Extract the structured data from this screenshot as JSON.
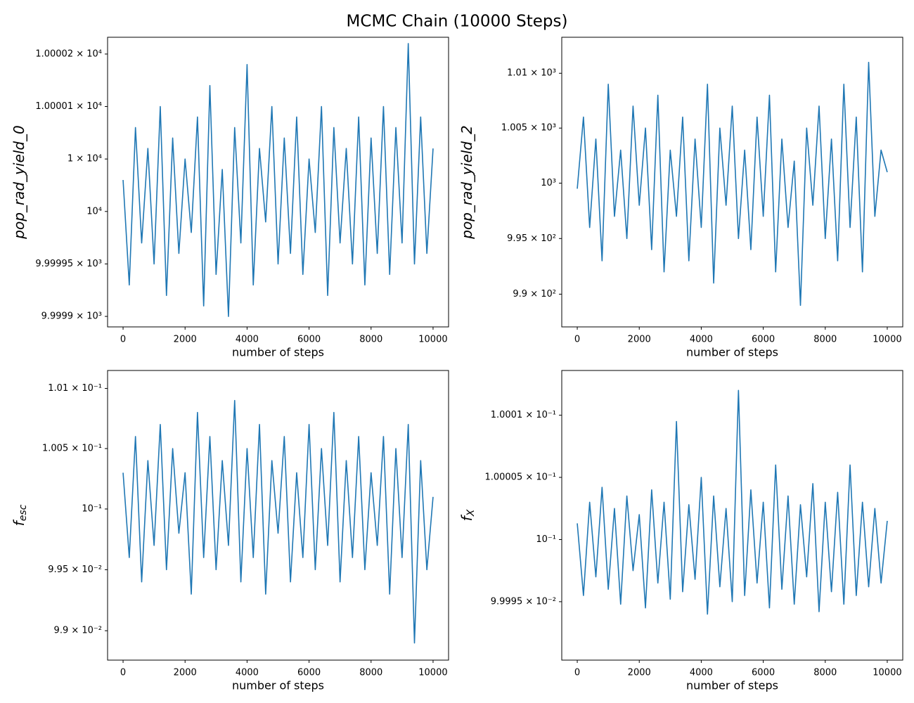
{
  "title": "MCMC Chain (10000 Steps)",
  "chart_data": [
    {
      "type": "line",
      "xlabel": "number of steps",
      "ylabel": "pop_rad_yield_0",
      "yscale": "log",
      "color": "#1f77b4",
      "xlim": [
        -500,
        10500
      ],
      "xticks": [
        0,
        2000,
        4000,
        6000,
        8000,
        10000
      ],
      "ylim": [
        9999.89,
        10000.166
      ],
      "yticks": [
        {
          "value": 9999.9,
          "label": "9.9999 × 10³"
        },
        {
          "value": 9999.95,
          "label": "9.99995 × 10³"
        },
        {
          "value": 10000,
          "label": "10⁴"
        },
        {
          "value": 10000.05,
          "label": "1 × 10⁴"
        },
        {
          "value": 10000.1,
          "label": "1.00001 × 10⁴"
        },
        {
          "value": 10000.15,
          "label": "1.00002 × 10⁴"
        }
      ],
      "x": [
        0,
        200,
        400,
        600,
        800,
        1000,
        1200,
        1400,
        1600,
        1800,
        2000,
        2200,
        2400,
        2600,
        2800,
        3000,
        3200,
        3400,
        3600,
        3800,
        4000,
        4200,
        4400,
        4600,
        4800,
        5000,
        5200,
        5400,
        5600,
        5800,
        6000,
        6200,
        6400,
        6600,
        6800,
        7000,
        7200,
        7400,
        7600,
        7800,
        8000,
        8200,
        8400,
        8600,
        8800,
        9000,
        9200,
        9400,
        9600,
        9800,
        10000
      ],
      "values": [
        10000.03,
        9999.93,
        10000.08,
        9999.97,
        10000.06,
        9999.95,
        10000.1,
        9999.92,
        10000.07,
        9999.96,
        10000.05,
        9999.98,
        10000.09,
        9999.91,
        10000.12,
        9999.94,
        10000.04,
        9999.9,
        10000.08,
        9999.97,
        10000.14,
        9999.93,
        10000.06,
        9999.99,
        10000.1,
        9999.95,
        10000.07,
        9999.96,
        10000.09,
        9999.94,
        10000.05,
        9999.98,
        10000.1,
        9999.92,
        10000.08,
        9999.97,
        10000.06,
        9999.95,
        10000.09,
        9999.93,
        10000.07,
        9999.96,
        10000.1,
        9999.94,
        10000.08,
        9999.97,
        10000.16,
        9999.95,
        10000.09,
        9999.96,
        10000.06
      ]
    },
    {
      "type": "line",
      "xlabel": "number of steps",
      "ylabel": "pop_rad_yield_2",
      "yscale": "log",
      "color": "#1f77b4",
      "xlim": [
        -500,
        10500
      ],
      "xticks": [
        0,
        2000,
        4000,
        6000,
        8000,
        10000
      ],
      "ylim": [
        987.07,
        1013.3
      ],
      "yticks": [
        {
          "value": 990,
          "label": "9.9 × 10²"
        },
        {
          "value": 995,
          "label": "9.95 × 10²"
        },
        {
          "value": 1000,
          "label": "10³"
        },
        {
          "value": 1005,
          "label": "1.005 × 10³"
        },
        {
          "value": 1010,
          "label": "1.01 × 10³"
        }
      ],
      "x": [
        0,
        200,
        400,
        600,
        800,
        1000,
        1200,
        1400,
        1600,
        1800,
        2000,
        2200,
        2400,
        2600,
        2800,
        3000,
        3200,
        3400,
        3600,
        3800,
        4000,
        4200,
        4400,
        4600,
        4800,
        5000,
        5200,
        5400,
        5600,
        5800,
        6000,
        6200,
        6400,
        6600,
        6800,
        7000,
        7200,
        7400,
        7600,
        7800,
        8000,
        8200,
        8400,
        8600,
        8800,
        9000,
        9200,
        9400,
        9600,
        9800,
        10000
      ],
      "values": [
        999.5,
        1006,
        996,
        1004,
        993,
        1009,
        997,
        1003,
        995,
        1007,
        998,
        1005,
        994,
        1008,
        992,
        1003,
        997,
        1006,
        993,
        1004,
        996,
        1009,
        991,
        1005,
        998,
        1007,
        995,
        1003,
        994,
        1006,
        997,
        1008,
        992,
        1004,
        996,
        1002,
        989,
        1005,
        998,
        1007,
        995,
        1004,
        993,
        1009,
        996,
        1006,
        992,
        1011,
        997,
        1003,
        1001
      ]
    },
    {
      "type": "line",
      "xlabel": "number of steps",
      "ylabel": "f",
      "ylabel_subscript": "esc",
      "yscale": "log",
      "color": "#1f77b4",
      "xlim": [
        -500,
        10500
      ],
      "xticks": [
        0,
        2000,
        4000,
        6000,
        8000,
        10000
      ],
      "ylim": [
        0.09876,
        0.10115
      ],
      "yticks": [
        {
          "value": 0.099,
          "label": "9.9 × 10⁻²"
        },
        {
          "value": 0.0995,
          "label": "9.95 × 10⁻²"
        },
        {
          "value": 0.1,
          "label": "10⁻¹"
        },
        {
          "value": 0.1005,
          "label": "1.005 × 10⁻¹"
        },
        {
          "value": 0.101,
          "label": "1.01 × 10⁻¹"
        }
      ],
      "x": [
        0,
        200,
        400,
        600,
        800,
        1000,
        1200,
        1400,
        1600,
        1800,
        2000,
        2200,
        2400,
        2600,
        2800,
        3000,
        3200,
        3400,
        3600,
        3800,
        4000,
        4200,
        4400,
        4600,
        4800,
        5000,
        5200,
        5400,
        5600,
        5800,
        6000,
        6200,
        6400,
        6600,
        6800,
        7000,
        7200,
        7400,
        7600,
        7800,
        8000,
        8200,
        8400,
        8600,
        8800,
        9000,
        9200,
        9400,
        9600,
        9800,
        10000
      ],
      "values": [
        0.1003,
        0.0996,
        0.1006,
        0.0994,
        0.1004,
        0.0997,
        0.1007,
        0.0995,
        0.1005,
        0.0998,
        0.1003,
        0.0993,
        0.1008,
        0.0996,
        0.1006,
        0.0995,
        0.1004,
        0.0997,
        0.1009,
        0.0994,
        0.1005,
        0.0996,
        0.1007,
        0.0993,
        0.1004,
        0.0998,
        0.1006,
        0.0994,
        0.1003,
        0.0996,
        0.1007,
        0.0995,
        0.1005,
        0.0997,
        0.1008,
        0.0994,
        0.1004,
        0.0996,
        0.1006,
        0.0995,
        0.1003,
        0.0997,
        0.1006,
        0.0993,
        0.1005,
        0.0996,
        0.1007,
        0.0989,
        0.1004,
        0.0995,
        0.1001
      ]
    },
    {
      "type": "line",
      "xlabel": "number of steps",
      "ylabel": "f",
      "ylabel_subscript": "X",
      "yscale": "log",
      "color": "#1f77b4",
      "xlim": [
        -500,
        10500
      ],
      "xticks": [
        0,
        2000,
        4000,
        6000,
        8000,
        10000
      ],
      "ylim": [
        0.0999903,
        0.1000136
      ],
      "yticks": [
        {
          "value": 0.099995,
          "label": "9.9995 × 10⁻²"
        },
        {
          "value": 0.1,
          "label": "10⁻¹"
        },
        {
          "value": 0.100005,
          "label": "1.00005 × 10⁻¹"
        },
        {
          "value": 0.10001,
          "label": "1.0001 × 10⁻¹"
        }
      ],
      "x": [
        0,
        200,
        400,
        600,
        800,
        1000,
        1200,
        1400,
        1600,
        1800,
        2000,
        2200,
        2400,
        2600,
        2800,
        3000,
        3200,
        3400,
        3600,
        3800,
        4000,
        4200,
        4400,
        4600,
        4800,
        5000,
        5200,
        5400,
        5600,
        5800,
        6000,
        6200,
        6400,
        6600,
        6800,
        7000,
        7200,
        7400,
        7600,
        7800,
        8000,
        8200,
        8400,
        8600,
        8800,
        9000,
        9200,
        9400,
        9600,
        9800,
        10000
      ],
      "values": [
        0.1000013,
        0.0999955,
        0.100003,
        0.099997,
        0.1000042,
        0.099996,
        0.1000025,
        0.0999948,
        0.1000035,
        0.0999975,
        0.100002,
        0.0999945,
        0.100004,
        0.0999965,
        0.100003,
        0.0999952,
        0.1000095,
        0.0999958,
        0.1000028,
        0.0999968,
        0.100005,
        0.099994,
        0.1000035,
        0.0999962,
        0.1000025,
        0.099995,
        0.100012,
        0.0999955,
        0.100004,
        0.0999965,
        0.100003,
        0.0999945,
        0.100006,
        0.099996,
        0.1000035,
        0.0999948,
        0.1000028,
        0.099997,
        0.1000045,
        0.0999942,
        0.100003,
        0.0999958,
        0.1000038,
        0.0999948,
        0.100006,
        0.0999955,
        0.100003,
        0.0999962,
        0.1000025,
        0.0999965,
        0.1000015
      ]
    }
  ]
}
